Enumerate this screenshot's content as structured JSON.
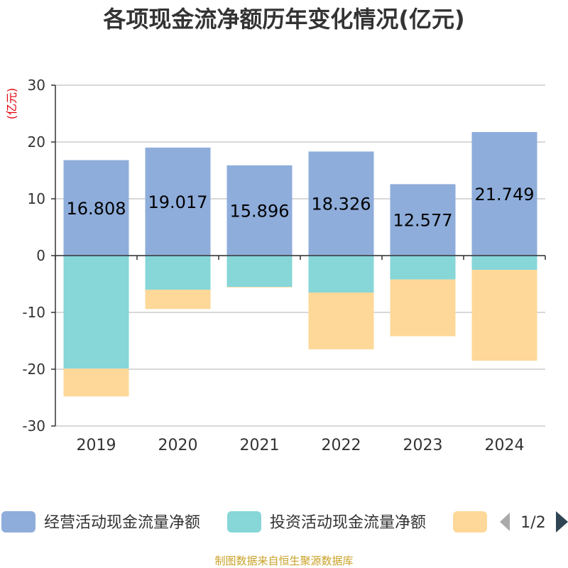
{
  "chart_data": {
    "type": "bar",
    "stacked": true,
    "title": "各项现金流净额历年变化情况(亿元)",
    "ylabel": "(亿元)",
    "xlabel": "",
    "ylim": [
      -30,
      30
    ],
    "yticks": [
      30,
      20,
      10,
      0,
      -10,
      -20,
      -30
    ],
    "grid": true,
    "categories": [
      "2019",
      "2020",
      "2021",
      "2022",
      "2023",
      "2024"
    ],
    "series": [
      {
        "name": "经营活动现金流量净额",
        "color": "#8eaddb",
        "values": [
          16.808,
          19.017,
          15.896,
          18.326,
          12.577,
          21.749
        ],
        "labels": [
          "16.808",
          "19.017",
          "15.896",
          "18.326",
          "12.577",
          "21.749"
        ]
      },
      {
        "name": "投资活动现金流量净额",
        "color": "#87d6d8",
        "values": [
          -19.9,
          -6.0,
          -5.5,
          -6.5,
          -4.2,
          -2.5
        ]
      },
      {
        "name": "",
        "color": "#fdd899",
        "values": [
          -4.9,
          -3.4,
          -0.1,
          -10.0,
          -10.0,
          -16.0
        ]
      }
    ],
    "legend": {
      "position": "bottom",
      "page": "1/2"
    }
  },
  "source": "制图数据来自恒生聚源数据库"
}
